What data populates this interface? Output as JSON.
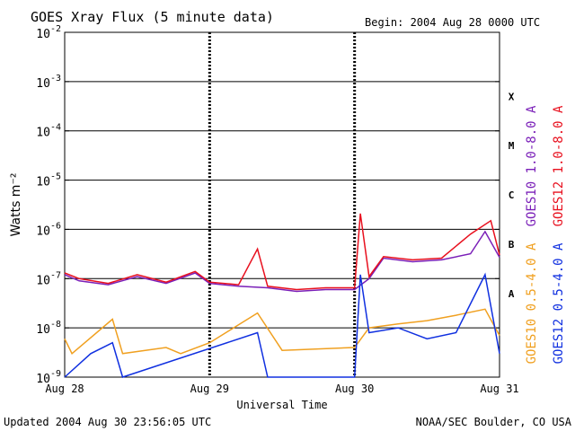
{
  "chart_data": {
    "type": "line",
    "title": "GOES Xray Flux (5 minute data)",
    "begin_label": "Begin:  2004 Aug 28 0000 UTC",
    "xlabel": "Universal Time",
    "ylabel": "Watts m⁻²",
    "x_ticks": [
      "Aug 28",
      "Aug 29",
      "Aug 30",
      "Aug 31"
    ],
    "x_range": [
      "2004-08-28 00:00",
      "2004-08-31 00:00"
    ],
    "y_scale": "log",
    "ylim": [
      1e-09,
      0.01
    ],
    "y_ticks": [
      {
        "base": "10",
        "exp": "-9"
      },
      {
        "base": "10",
        "exp": "-8"
      },
      {
        "base": "10",
        "exp": "-7"
      },
      {
        "base": "10",
        "exp": "-6"
      },
      {
        "base": "10",
        "exp": "-5"
      },
      {
        "base": "10",
        "exp": "-4"
      },
      {
        "base": "10",
        "exp": "-3"
      },
      {
        "base": "10",
        "exp": "-2"
      }
    ],
    "flare_classes": [
      {
        "label": "A",
        "value": 5e-08
      },
      {
        "label": "B",
        "value": 5e-07
      },
      {
        "label": "C",
        "value": 5e-06
      },
      {
        "label": "M",
        "value": 5e-05
      },
      {
        "label": "X",
        "value": 0.0005
      }
    ],
    "legend_position": "right, rotated",
    "grid": "horizontal at class thresholds; dashed vertical at day boundaries",
    "series": [
      {
        "name": "GOES10 1.0-8.0 A",
        "color": "#7a1fb8",
        "points": [
          [
            0,
            1.2e-07
          ],
          [
            0.1,
            9e-08
          ],
          [
            0.3,
            7.5e-08
          ],
          [
            0.5,
            1.1e-07
          ],
          [
            0.7,
            8e-08
          ],
          [
            0.9,
            1.3e-07
          ],
          [
            1.0,
            8e-08
          ],
          [
            1.2,
            7e-08
          ],
          [
            1.4,
            6.5e-08
          ],
          [
            1.6,
            5.5e-08
          ],
          [
            1.8,
            6e-08
          ],
          [
            2.0,
            6e-08
          ],
          [
            2.1,
            1e-07
          ],
          [
            2.2,
            2.6e-07
          ],
          [
            2.4,
            2.2e-07
          ],
          [
            2.6,
            2.4e-07
          ],
          [
            2.8,
            3.2e-07
          ],
          [
            2.9,
            9e-07
          ],
          [
            3.0,
            2.7e-07
          ]
        ]
      },
      {
        "name": "GOES12 1.0-8.0 A",
        "color": "#e8101e",
        "points": [
          [
            0,
            1.3e-07
          ],
          [
            0.1,
            1e-07
          ],
          [
            0.3,
            8e-08
          ],
          [
            0.5,
            1.2e-07
          ],
          [
            0.7,
            8.5e-08
          ],
          [
            0.9,
            1.4e-07
          ],
          [
            1.0,
            8.5e-08
          ],
          [
            1.2,
            7.5e-08
          ],
          [
            1.33,
            4e-07
          ],
          [
            1.4,
            7e-08
          ],
          [
            1.6,
            6e-08
          ],
          [
            1.8,
            6.5e-08
          ],
          [
            2.0,
            6.5e-08
          ],
          [
            2.04,
            2.1e-06
          ],
          [
            2.1,
            1.1e-07
          ],
          [
            2.2,
            2.8e-07
          ],
          [
            2.4,
            2.4e-07
          ],
          [
            2.6,
            2.6e-07
          ],
          [
            2.8,
            8e-07
          ],
          [
            2.94,
            1.5e-06
          ],
          [
            3.0,
            3e-07
          ]
        ]
      },
      {
        "name": "GOES10 0.5-4.0 A",
        "color": "#f0a020",
        "points": [
          [
            0,
            6e-09
          ],
          [
            0.05,
            3e-09
          ],
          [
            0.33,
            1.5e-08
          ],
          [
            0.4,
            3e-09
          ],
          [
            0.7,
            4e-09
          ],
          [
            0.8,
            3e-09
          ],
          [
            1.0,
            5e-09
          ],
          [
            1.33,
            2e-08
          ],
          [
            1.5,
            3.5e-09
          ],
          [
            2.0,
            4e-09
          ],
          [
            2.1,
            1e-08
          ],
          [
            2.3,
            1.2e-08
          ],
          [
            2.5,
            1.4e-08
          ],
          [
            2.7,
            1.8e-08
          ],
          [
            2.9,
            2.4e-08
          ],
          [
            3.0,
            7e-09
          ]
        ]
      },
      {
        "name": "GOES12 0.5-4.0 A",
        "color": "#1030e0",
        "points": [
          [
            0,
            1e-09
          ],
          [
            0.18,
            3e-09
          ],
          [
            0.33,
            5e-09
          ],
          [
            0.4,
            1e-09
          ],
          [
            1.33,
            8e-09
          ],
          [
            1.4,
            1e-09
          ],
          [
            2.0,
            1e-09
          ],
          [
            2.04,
            1.2e-07
          ],
          [
            2.1,
            8e-09
          ],
          [
            2.3,
            1e-08
          ],
          [
            2.5,
            6e-09
          ],
          [
            2.7,
            8e-09
          ],
          [
            2.9,
            1.2e-07
          ],
          [
            3.0,
            3e-09
          ]
        ]
      }
    ]
  },
  "footer": {
    "updated": "Updated 2004 Aug 30 23:56:05 UTC",
    "credit": "NOAA/SEC Boulder, CO USA"
  }
}
